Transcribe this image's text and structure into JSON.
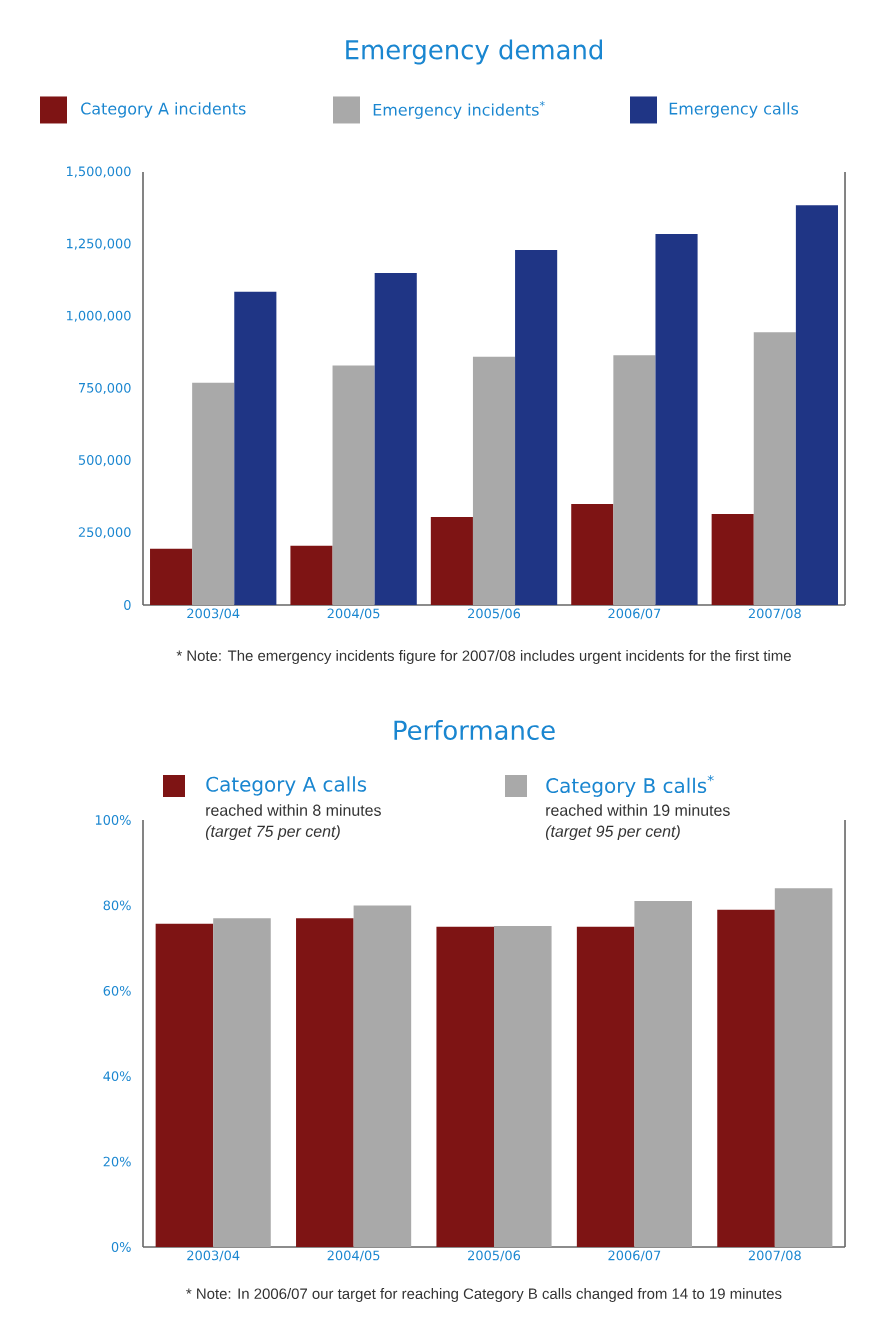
{
  "chart_data": [
    {
      "type": "bar",
      "title": "Emergency demand",
      "categories": [
        "2003/04",
        "2004/05",
        "2005/06",
        "2006/07",
        "2007/08"
      ],
      "series": [
        {
          "name": "Category A incidents",
          "color": "#7e1414",
          "values": [
            195000,
            205000,
            305000,
            350000,
            315000
          ]
        },
        {
          "name": "Emergency incidents$^{*}$",
          "color": "#a9a9a9",
          "values": [
            770000,
            830000,
            860000,
            865000,
            945000
          ]
        },
        {
          "name": "Emergency calls",
          "color": "#1f3585",
          "values": [
            1085000,
            1150000,
            1230000,
            1285000,
            1385000
          ]
        }
      ],
      "ylim": [
        0,
        1500000
      ],
      "yticks": [
        0,
        {
          "value": 250000,
          "label": "250,000"
        },
        {
          "value": 500000,
          "label": "500,000"
        },
        {
          "value": 750000,
          "label": "750,000"
        },
        {
          "value": 1000000,
          "label": "1,000,000"
        },
        {
          "value": 1250000,
          "label": "1,250,000"
        },
        {
          "value": 1500000,
          "label": "1,500,000"
        }
      ],
      "legend": "top",
      "annotations": [
        "* Note: The emergency incidents figure for 2007/08 includes urgent incidents for the first time"
      ]
    },
    {
      "type": "bar",
      "title": "Performance",
      "categories": [
        "2003/04",
        "2004/05",
        "2005/06",
        "2006/07",
        "2007/08"
      ],
      "series": [
        {
          "name": "Category A calls",
          "color": "#7e1414",
          "values": [
            75.7,
            77,
            75,
            75,
            79
          ]
        },
        {
          "name": "Category B calls$^{*}$",
          "color": "#a9a9a9",
          "values": [
            77,
            80,
            75.2,
            81,
            84
          ]
        }
      ],
      "ylim": [
        0,
        100
      ],
      "yticks": [
        {
          "value": 0,
          "label": "0%"
        },
        {
          "value": 20,
          "label": "20%"
        },
        {
          "value": 40,
          "label": "40%"
        },
        {
          "value": 60,
          "label": "60%"
        },
        {
          "value": 80,
          "label": "80%"
        },
        {
          "value": 100,
          "label": "100%"
        }
      ],
      "legend": "top",
      "annotations": [
        "reached within 8 minutes",
        "(target 75 per cent)",
        "reached within 19 minutes",
        "(target 95 per cent)",
        "* Note: In 2006/07 our target for reaching Category B calls changed from 14 to 19 minutes"
      ]
    }
  ]
}
